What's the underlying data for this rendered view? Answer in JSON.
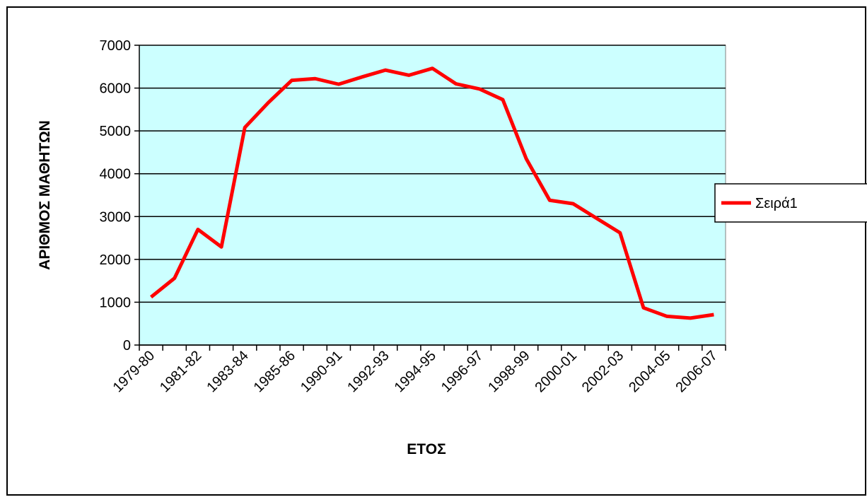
{
  "chart_data": {
    "type": "line",
    "x_label": "ΕΤΟΣ",
    "y_label": "ΑΡΙΘΜΟΣ ΜΑΘΗΤΩΝ",
    "categories": [
      "1979-80",
      null,
      "1981-82",
      null,
      "1983-84",
      null,
      "1985-86",
      null,
      "1990-91",
      null,
      "1992-93",
      null,
      "1994-95",
      null,
      "1996-97",
      null,
      "1998-99",
      null,
      "2000-01",
      null,
      "2002-03",
      null,
      "2004-05",
      null,
      "2006-07"
    ],
    "series": [
      {
        "name": "Σειρά1",
        "color": "#ff0000",
        "values": [
          1120,
          1560,
          2700,
          2290,
          5080,
          5660,
          6180,
          6220,
          6090,
          6260,
          6420,
          6300,
          6460,
          6100,
          5980,
          5730,
          4350,
          3380,
          3300,
          2960,
          2620,
          870,
          670,
          630,
          710
        ]
      }
    ],
    "ylim": [
      0,
      7000
    ],
    "yticks": [
      0,
      1000,
      2000,
      3000,
      4000,
      5000,
      6000,
      7000
    ],
    "grid": true,
    "legend": "right",
    "plot_background": "#ccffff"
  }
}
